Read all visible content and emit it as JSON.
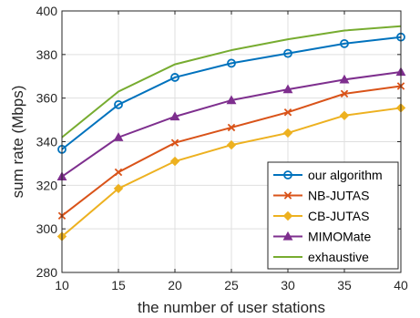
{
  "chart_data": {
    "type": "line",
    "title": "",
    "xlabel": "the number of user stations",
    "ylabel": "sum rate (Mbps)",
    "x": [
      10,
      15,
      20,
      25,
      30,
      35,
      40
    ],
    "xlim": [
      10,
      40
    ],
    "ylim": [
      280,
      400
    ],
    "xticks": [
      10,
      15,
      20,
      25,
      30,
      35,
      40
    ],
    "yticks": [
      280,
      300,
      320,
      340,
      360,
      380,
      400
    ],
    "grid": true,
    "legend_position": "bottom-right",
    "series": [
      {
        "name": "our algorithm",
        "color": "#0072BD",
        "marker": "circle",
        "values": [
          336.5,
          357,
          369.5,
          376,
          380.5,
          385,
          388
        ]
      },
      {
        "name": "NB-JUTAS",
        "color": "#D95319",
        "marker": "x",
        "values": [
          306,
          326,
          339.5,
          346.5,
          353.5,
          362,
          365.5
        ]
      },
      {
        "name": "CB-JUTAS",
        "color": "#EDB120",
        "marker": "diamond",
        "values": [
          296.5,
          318.5,
          331,
          338.5,
          344,
          352,
          355.5
        ]
      },
      {
        "name": "MIMOMate",
        "color": "#7E2F8E",
        "marker": "triangle",
        "values": [
          324,
          342,
          351.5,
          359,
          364,
          368.5,
          372
        ]
      },
      {
        "name": "exhaustive",
        "color": "#77AC30",
        "marker": "none",
        "values": [
          342,
          363,
          375.5,
          382,
          387,
          391,
          393
        ]
      }
    ]
  }
}
